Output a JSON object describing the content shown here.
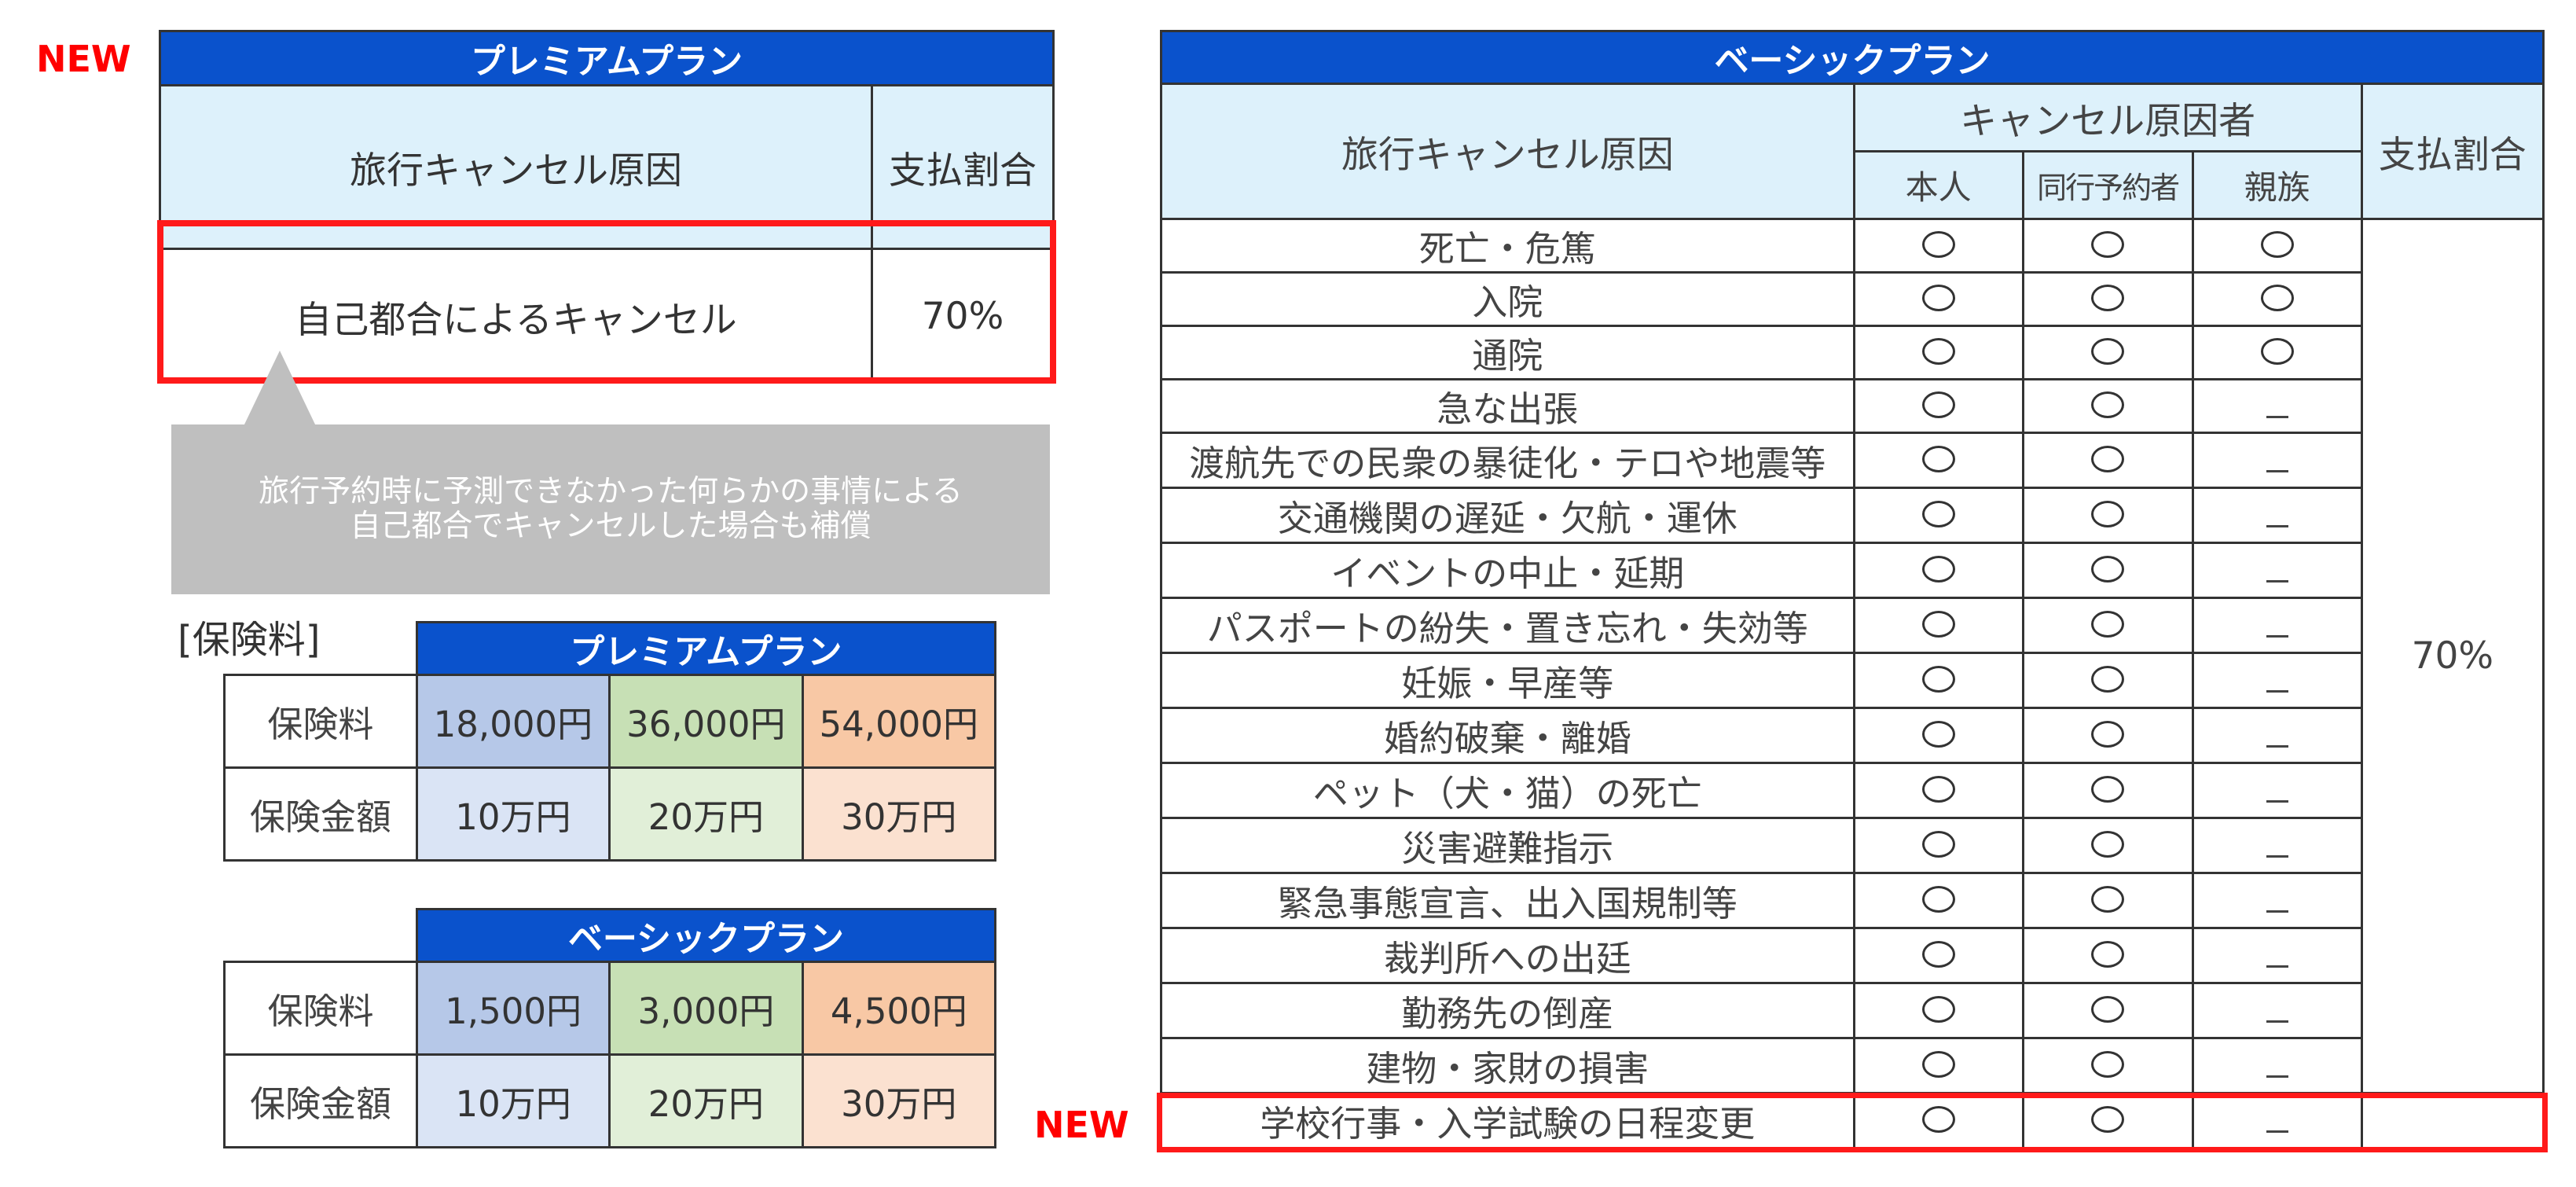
{
  "left": {
    "new_label": "NEW",
    "premium_cause_table": {
      "title": "プレミアムプラン",
      "col_cause": "旅行キャンセル原因",
      "col_rate": "支払割合",
      "row_cause": "自己都合によるキャンセル",
      "row_rate": "70%"
    },
    "callout": {
      "line1": "旅行予約時に予測できなかった何らかの事情による",
      "line2": "自己都合でキャンセルした場合も補償"
    },
    "fee_heading": "[保険料]",
    "premium_fee": {
      "title": "プレミアムプラン",
      "row1_label": "保険料",
      "row1": [
        "18,000円",
        "36,000円",
        "54,000円"
      ],
      "row2_label": "保険金額",
      "row2": [
        "10万円",
        "20万円",
        "30万円"
      ]
    },
    "basic_fee": {
      "title": "ベーシックプラン",
      "row1_label": "保険料",
      "row1": [
        "1,500円",
        "3,000円",
        "4,500円"
      ],
      "row2_label": "保険金額",
      "row2": [
        "10万円",
        "20万円",
        "30万円"
      ]
    }
  },
  "right": {
    "new_label": "NEW",
    "title": "ベーシックプラン",
    "col_cause": "旅行キャンセル原因",
    "col_group": "キャンセル原因者",
    "col_self": "本人",
    "col_companion": "同行予約者",
    "col_family": "親族",
    "col_rate": "支払割合",
    "rate_value": "70%",
    "rows": [
      {
        "cause": "死亡・危篤",
        "self": "○",
        "companion": "○",
        "family": "○"
      },
      {
        "cause": "入院",
        "self": "○",
        "companion": "○",
        "family": "○"
      },
      {
        "cause": "通院",
        "self": "○",
        "companion": "○",
        "family": "○"
      },
      {
        "cause": "急な出張",
        "self": "○",
        "companion": "○",
        "family": "－"
      },
      {
        "cause": "渡航先での民衆の暴徒化・テロや地震等",
        "self": "○",
        "companion": "○",
        "family": "－"
      },
      {
        "cause": "交通機関の遅延・欠航・運休",
        "self": "○",
        "companion": "○",
        "family": "－"
      },
      {
        "cause": "イベントの中止・延期",
        "self": "○",
        "companion": "○",
        "family": "－"
      },
      {
        "cause": "パスポートの紛失・置き忘れ・失効等",
        "self": "○",
        "companion": "○",
        "family": "－"
      },
      {
        "cause": "妊娠・早産等",
        "self": "○",
        "companion": "○",
        "family": "－"
      },
      {
        "cause": "婚約破棄・離婚",
        "self": "○",
        "companion": "○",
        "family": "－"
      },
      {
        "cause": "ペット（犬・猫）の死亡",
        "self": "○",
        "companion": "○",
        "family": "－"
      },
      {
        "cause": "災害避難指示",
        "self": "○",
        "companion": "○",
        "family": "－"
      },
      {
        "cause": "緊急事態宣言、出入国規制等",
        "self": "○",
        "companion": "○",
        "family": "－"
      },
      {
        "cause": "裁判所への出廷",
        "self": "○",
        "companion": "○",
        "family": "－"
      },
      {
        "cause": "勤務先の倒産",
        "self": "○",
        "companion": "○",
        "family": "－"
      },
      {
        "cause": "建物・家財の損害",
        "self": "○",
        "companion": "○",
        "family": "－"
      },
      {
        "cause": "学校行事・入学試験の日程変更",
        "self": "○",
        "companion": "○",
        "family": "－"
      }
    ]
  },
  "colors": {
    "header_blue": "#0a52cc",
    "header_light": "#ddf1fb",
    "highlight_red": "#ff1a1a",
    "new_red": "#ff0000",
    "callout_gray": "#bfbfbf"
  }
}
